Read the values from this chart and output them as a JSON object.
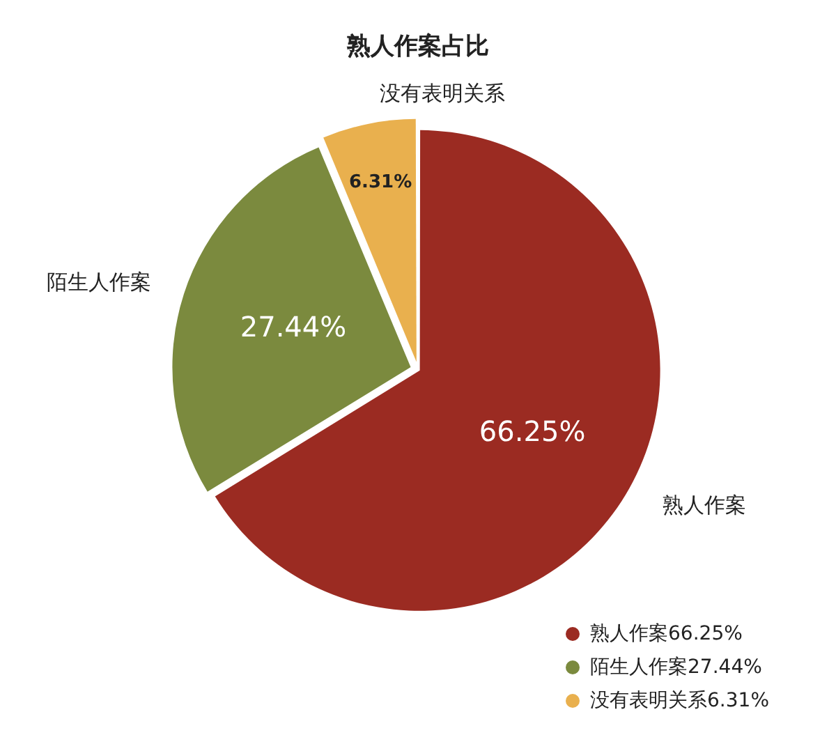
{
  "chart_data": {
    "type": "pie",
    "title": "熟人作案占比",
    "categories": [
      "熟人作案",
      "陌生人作案",
      "没有表明关系"
    ],
    "values": [
      66.25,
      27.44,
      6.31
    ],
    "value_labels": [
      "66.25%",
      "27.44%",
      "6.31%"
    ],
    "colors": [
      "#9b2b22",
      "#7b8a3e",
      "#e9b04e"
    ],
    "legend": "bottom right"
  }
}
